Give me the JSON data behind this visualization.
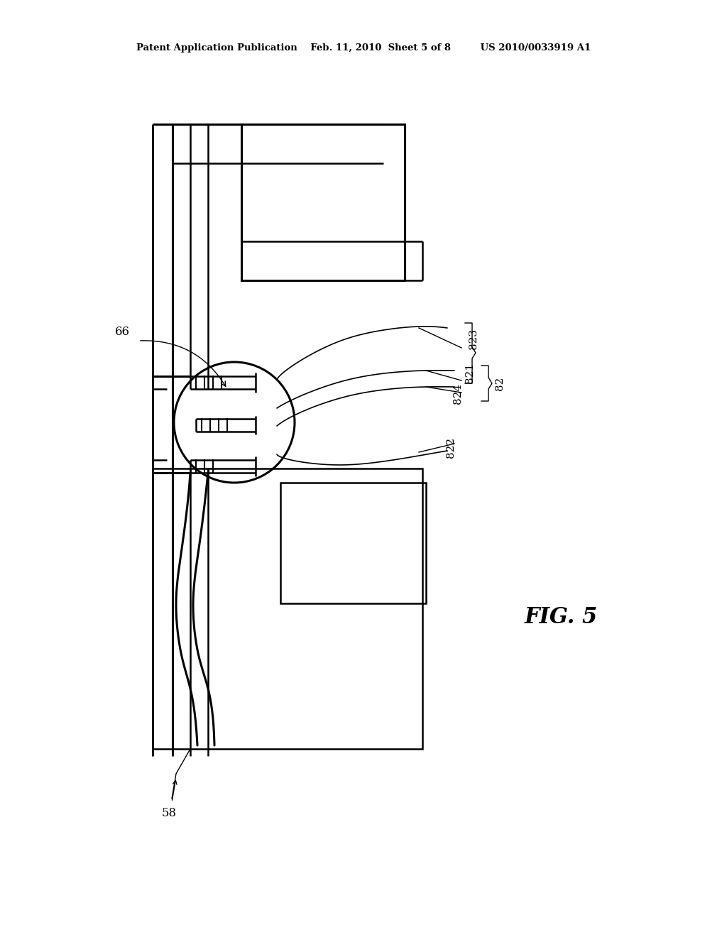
{
  "bg_color": "#ffffff",
  "line_color": "#000000",
  "lw_thin": 1.2,
  "lw_med": 1.8,
  "lw_thick": 2.2,
  "header": "Patent Application Publication    Feb. 11, 2010  Sheet 5 of 8         US 2010/0033919 A1",
  "fig_label": "FIG. 5"
}
